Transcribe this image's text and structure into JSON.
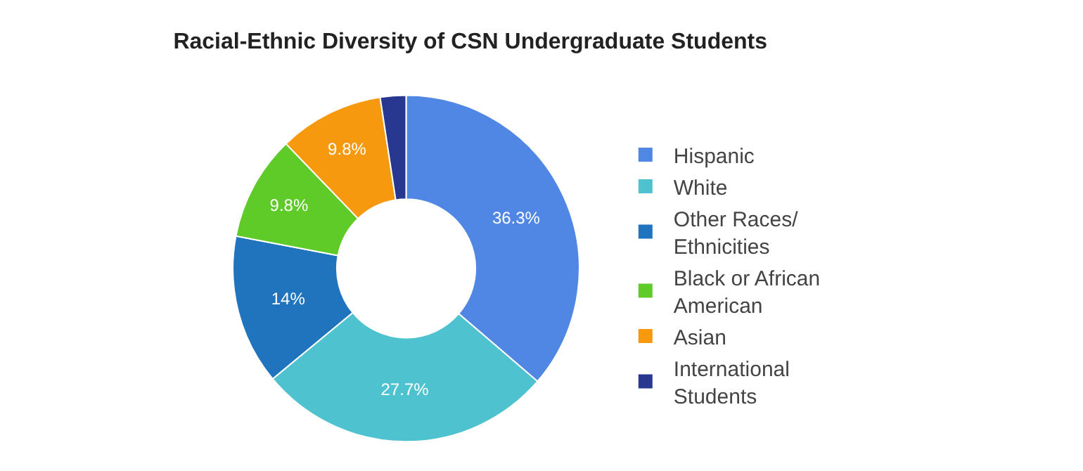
{
  "chart_data": {
    "type": "donut",
    "title": "Racial-Ethnic Diversity of CSN Undergraduate Students",
    "categories": [
      "Hispanic",
      "White",
      "Other Races/ Ethnicities",
      "Black or African American",
      "Asian",
      "International Students"
    ],
    "values": [
      36.3,
      27.7,
      14,
      9.8,
      9.8,
      2.4
    ],
    "value_labels": [
      "36.3%",
      "27.7%",
      "14%",
      "9.8%",
      "9.8%",
      null
    ],
    "colors": [
      "#5087e5",
      "#4fc2cf",
      "#1f74bd",
      "#5fcb28",
      "#f7990e",
      "#283891"
    ],
    "legend": "right"
  }
}
